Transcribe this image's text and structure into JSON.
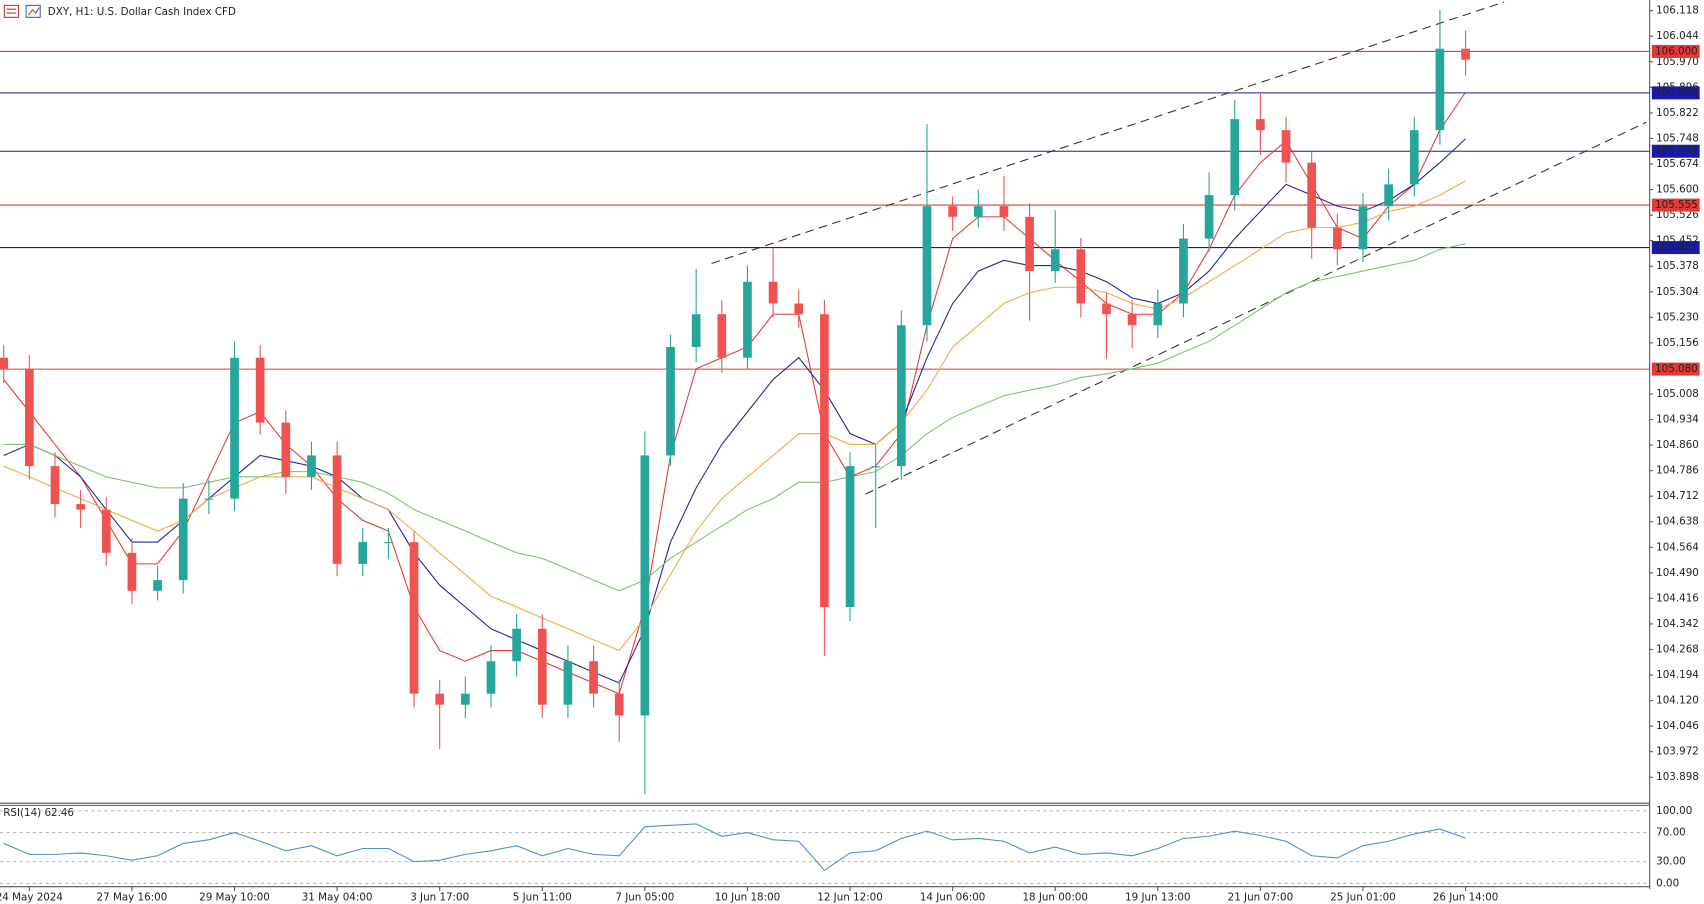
{
  "chart_data": [
    {
      "type": "candlestick",
      "title": "DXY, H1: U.S. Dollar Cash Index CFD",
      "categories": [
        null,
        "24 May 2024",
        null,
        null,
        null,
        "27 May 16:00",
        null,
        null,
        null,
        "29 May 10:00",
        null,
        null,
        null,
        "31 May 04:00",
        null,
        null,
        null,
        "3 Jun 17:00",
        null,
        null,
        null,
        "5 Jun 11:00",
        null,
        null,
        null,
        "7 Jun 05:00",
        null,
        null,
        null,
        "10 Jun 18:00",
        null,
        null,
        null,
        "12 Jun 12:00",
        null,
        null,
        null,
        "14 Jun 06:00",
        null,
        null,
        null,
        "18 Jun 00:00",
        null,
        null,
        null,
        "19 Jun 13:00",
        null,
        null,
        null,
        "21 Jun 07:00",
        null,
        null,
        null,
        "25 Jun 01:00",
        null,
        null,
        null,
        "26 Jun 14:00"
      ],
      "open": [
        105.113,
        105.081,
        104.799,
        104.689,
        104.673,
        104.548,
        104.438,
        104.469,
        104.705,
        104.705,
        105.113,
        104.925,
        104.768,
        104.83,
        104.516,
        104.579,
        104.579,
        104.14,
        104.108,
        104.14,
        104.234,
        104.328,
        104.108,
        104.234,
        104.14,
        104.077,
        104.83,
        105.144,
        105.239,
        105.113,
        105.333,
        105.27,
        105.239,
        104.391,
        104.799,
        104.799,
        105.207,
        105.552,
        105.521,
        105.552,
        105.521,
        105.364,
        105.427,
        105.27,
        105.239,
        105.207,
        105.27,
        105.458,
        105.584,
        105.804,
        105.772,
        105.678,
        105.49,
        105.427,
        105.552,
        105.615,
        105.772,
        106.008
      ],
      "high": [
        105.15,
        105.12,
        104.84,
        104.73,
        104.71,
        104.59,
        104.51,
        104.75,
        104.76,
        105.16,
        105.15,
        104.96,
        104.87,
        104.87,
        104.62,
        104.62,
        104.61,
        104.18,
        104.19,
        104.28,
        104.37,
        104.37,
        104.28,
        104.28,
        104.18,
        104.9,
        105.18,
        105.37,
        105.28,
        105.38,
        105.43,
        105.31,
        105.28,
        104.84,
        104.86,
        105.25,
        105.79,
        105.58,
        105.6,
        105.64,
        105.56,
        105.54,
        105.46,
        105.3,
        105.28,
        105.31,
        105.5,
        105.65,
        105.86,
        105.88,
        105.81,
        105.71,
        105.53,
        105.59,
        105.66,
        105.81,
        106.12,
        106.06
      ],
      "low": [
        105.04,
        104.76,
        104.65,
        104.62,
        104.51,
        104.4,
        104.41,
        104.43,
        104.66,
        104.67,
        104.89,
        104.72,
        104.73,
        104.48,
        104.48,
        104.53,
        104.1,
        103.98,
        104.07,
        104.1,
        104.19,
        104.07,
        104.07,
        104.1,
        104.0,
        103.85,
        104.8,
        105.1,
        105.07,
        105.08,
        105.23,
        105.2,
        104.25,
        104.35,
        104.62,
        104.76,
        105.16,
        105.48,
        105.49,
        105.48,
        105.22,
        105.33,
        105.23,
        105.11,
        105.14,
        105.17,
        105.23,
        105.42,
        105.54,
        105.7,
        105.62,
        105.4,
        105.38,
        105.39,
        105.51,
        105.58,
        105.73,
        105.93
      ],
      "close": [
        105.081,
        104.799,
        104.689,
        104.673,
        104.548,
        104.438,
        104.469,
        104.705,
        104.705,
        105.113,
        104.925,
        104.768,
        104.83,
        104.516,
        104.579,
        104.579,
        104.14,
        104.108,
        104.14,
        104.234,
        104.328,
        104.108,
        104.234,
        104.14,
        104.077,
        104.83,
        105.144,
        105.239,
        105.113,
        105.333,
        105.27,
        105.239,
        104.391,
        104.799,
        104.799,
        105.207,
        105.552,
        105.521,
        105.552,
        105.521,
        105.364,
        105.427,
        105.27,
        105.239,
        105.207,
        105.27,
        105.458,
        105.584,
        105.804,
        105.772,
        105.678,
        105.49,
        105.427,
        105.552,
        105.615,
        105.772,
        106.008,
        105.976
      ],
      "up_color": "#26a69a",
      "down_color": "#ef5350",
      "series": [
        {
          "color": "#e53935",
          "values": [
            105.05,
            104.956,
            104.862,
            104.768,
            104.642,
            104.516,
            104.516,
            104.611,
            104.768,
            104.925,
            104.956,
            104.862,
            104.799,
            104.705,
            104.642,
            104.611,
            104.391,
            104.265,
            104.234,
            104.265,
            104.265,
            104.234,
            104.202,
            104.171,
            104.14,
            104.391,
            104.83,
            105.081,
            105.113,
            105.144,
            105.239,
            105.239,
            104.893,
            104.768,
            104.799,
            104.893,
            105.207,
            105.458,
            105.521,
            105.521,
            105.458,
            105.395,
            105.333,
            105.27,
            105.239,
            105.239,
            105.301,
            105.427,
            105.584,
            105.678,
            105.741,
            105.615,
            105.49,
            105.458,
            105.552,
            105.615,
            105.772,
            105.882
          ]
        },
        {
          "color": "#23249e",
          "values": [
            104.83,
            104.862,
            104.83,
            104.768,
            104.673,
            104.579,
            104.579,
            104.642,
            104.705,
            104.768,
            104.83,
            104.815,
            104.799,
            104.768,
            104.705,
            104.673,
            104.548,
            104.454,
            104.391,
            104.328,
            104.296,
            104.265,
            104.234,
            104.202,
            104.171,
            104.328,
            104.579,
            104.736,
            104.862,
            104.956,
            105.05,
            105.113,
            105.019,
            104.893,
            104.862,
            104.925,
            105.113,
            105.27,
            105.364,
            105.395,
            105.38,
            105.38,
            105.364,
            105.333,
            105.286,
            105.27,
            105.301,
            105.364,
            105.458,
            105.537,
            105.615,
            105.584,
            105.552,
            105.537,
            105.568,
            105.615,
            105.678,
            105.747
          ]
        },
        {
          "color": "#f5a940",
          "values": [
            104.799,
            104.768,
            104.736,
            104.705,
            104.673,
            104.642,
            104.611,
            104.642,
            104.705,
            104.736,
            104.768,
            104.768,
            104.768,
            104.736,
            104.705,
            104.673,
            104.611,
            104.548,
            104.485,
            104.422,
            104.391,
            104.359,
            104.328,
            104.296,
            104.265,
            104.359,
            104.485,
            104.611,
            104.705,
            104.768,
            104.83,
            104.893,
            104.893,
            104.862,
            104.862,
            104.925,
            105.019,
            105.144,
            105.207,
            105.27,
            105.301,
            105.317,
            105.317,
            105.301,
            105.27,
            105.254,
            105.286,
            105.333,
            105.38,
            105.427,
            105.474,
            105.49,
            105.49,
            105.505,
            105.537,
            105.552,
            105.584,
            105.625
          ]
        },
        {
          "color": "#7cc36e",
          "values": [
            104.862,
            104.862,
            104.83,
            104.799,
            104.768,
            104.752,
            104.736,
            104.736,
            104.752,
            104.768,
            104.768,
            104.783,
            104.783,
            104.768,
            104.752,
            104.72,
            104.673,
            104.642,
            104.611,
            104.579,
            104.548,
            104.532,
            104.501,
            104.469,
            104.438,
            104.469,
            104.532,
            104.579,
            104.626,
            104.673,
            104.705,
            104.752,
            104.752,
            104.768,
            104.783,
            104.83,
            104.893,
            104.94,
            104.972,
            105.003,
            105.019,
            105.034,
            105.056,
            105.066,
            105.081,
            105.097,
            105.129,
            105.16,
            105.207,
            105.254,
            105.301,
            105.333,
            105.348,
            105.364,
            105.38,
            105.395,
            105.427,
            105.443
          ]
        }
      ],
      "levels": [
        {
          "value": 106.0,
          "label": "106.000",
          "color": "#e53935"
        },
        {
          "value": 105.88,
          "label": "105.880",
          "color": "#1a1aa8"
        },
        {
          "value": 105.711,
          "label": "105.711",
          "color": "#1a1aa8"
        },
        {
          "value": 105.555,
          "label": "105.555",
          "color": "#e53935"
        },
        {
          "value": 105.432,
          "label": "105.432",
          "color": "#1a1aa8"
        },
        {
          "value": 105.08,
          "label": "105.080",
          "color": "#e53935"
        }
      ],
      "trendlines": [
        {
          "x": [
            27.6,
            58.5
          ],
          "y": [
            105.386,
            106.143
          ]
        },
        {
          "x": [
            33.6,
            64.05
          ],
          "y": [
            104.718,
            105.795
          ]
        }
      ],
      "ylim": [
        103.826,
        106.149
      ],
      "yticks": [
        106.118,
        106.044,
        {
          "value": 105.97,
          "label": "105.970"
        },
        105.896,
        105.822,
        105.748,
        105.674,
        {
          "value": 105.6,
          "label": "105.600"
        },
        105.526,
        105.452,
        105.378,
        105.304,
        {
          "value": 105.23,
          "label": "105.230"
        },
        105.156,
        105.008,
        104.934,
        {
          "value": 104.86,
          "label": "104.860"
        },
        104.786,
        104.712,
        104.638,
        104.564,
        {
          "value": 104.49,
          "label": "104.490"
        },
        104.416,
        104.342,
        104.268,
        104.194,
        {
          "value": 104.12,
          "label": "104.120"
        },
        104.046,
        103.972,
        103.898
      ]
    },
    {
      "type": "line",
      "title": "RSI(14) 62.46",
      "color": "#4a90d9",
      "values": [
        55,
        40,
        40,
        42,
        38,
        32,
        38,
        55,
        60,
        70,
        58,
        45,
        52,
        38,
        48,
        48,
        30,
        32,
        40,
        45,
        52,
        38,
        48,
        40,
        38,
        78,
        80,
        82,
        65,
        70,
        60,
        58,
        18,
        42,
        45,
        62,
        72,
        60,
        62,
        58,
        42,
        50,
        40,
        42,
        38,
        48,
        62,
        65,
        72,
        66,
        58,
        38,
        35,
        52,
        58,
        68,
        75,
        62.46
      ],
      "ylim": [
        0,
        100
      ],
      "yticks": [
        {
          "value": 100,
          "label": "100.00"
        },
        {
          "value": 70,
          "label": "70.00"
        },
        {
          "value": 30,
          "label": "30.00"
        },
        {
          "value": 0,
          "label": "0.00"
        }
      ]
    }
  ]
}
